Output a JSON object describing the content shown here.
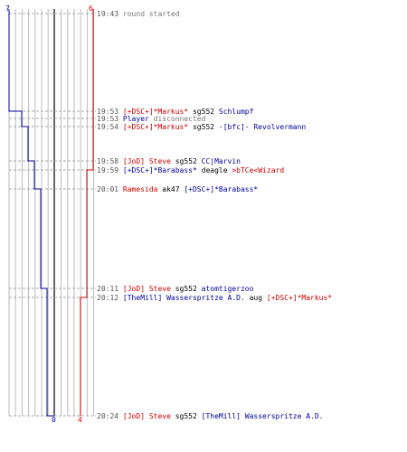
{
  "scores": {
    "blue_start": "7",
    "red_start": "6",
    "blue_end": "0",
    "red_end": "4"
  },
  "colors": {
    "blue": "#000099",
    "red": "#cc0000",
    "grid": "#bbbbbb",
    "center": "#666666",
    "dashed": "#aaaaaa",
    "text": "#000000",
    "timestamp": "#555555"
  },
  "events": [
    {
      "time": "19:43",
      "parts": [
        {
          "t": "round started",
          "c": "gray"
        }
      ]
    },
    {
      "time": "19:53",
      "parts": [
        {
          "t": "[+DSC+]*Markus*",
          "c": "red"
        },
        {
          "t": " sg552 ",
          "c": "text"
        },
        {
          "t": "Schlumpf",
          "c": "blue"
        }
      ]
    },
    {
      "time": "19:53",
      "parts": [
        {
          "t": "Player",
          "c": "blue"
        },
        {
          "t": " disconnected",
          "c": "gray"
        }
      ]
    },
    {
      "time": "19:54",
      "parts": [
        {
          "t": "[+DSC+]*Markus*",
          "c": "red"
        },
        {
          "t": " sg552 ",
          "c": "text"
        },
        {
          "t": "-[bfc]- Revolvermann",
          "c": "blue"
        }
      ]
    },
    {
      "time": "19:58",
      "parts": [
        {
          "t": "[JoD] Steve",
          "c": "red"
        },
        {
          "t": " sg552 ",
          "c": "text"
        },
        {
          "t": "CC|Marvin",
          "c": "blue"
        }
      ]
    },
    {
      "time": "19:59",
      "parts": [
        {
          "t": "[+DSC+]*Barabass*",
          "c": "blue"
        },
        {
          "t": " deagle ",
          "c": "text"
        },
        {
          "t": ">bTCe<Wizard",
          "c": "red"
        }
      ]
    },
    {
      "time": "20:01",
      "parts": [
        {
          "t": "Ramesida",
          "c": "red"
        },
        {
          "t": " ak47 ",
          "c": "text"
        },
        {
          "t": "[+DSC+]*Barabass*",
          "c": "blue"
        }
      ]
    },
    {
      "time": "20:11",
      "parts": [
        {
          "t": "[JoD] Steve",
          "c": "red"
        },
        {
          "t": " sg552 ",
          "c": "text"
        },
        {
          "t": "atomtigerzoo",
          "c": "blue"
        }
      ]
    },
    {
      "time": "20:12",
      "parts": [
        {
          "t": "[TheMill] Wasserspritze A.D.",
          "c": "blue"
        },
        {
          "t": " aug ",
          "c": "text"
        },
        {
          "t": "[+DSC+]*Markus*",
          "c": "red"
        }
      ]
    },
    {
      "time": "20:24",
      "parts": [
        {
          "t": "[JoD] Steve",
          "c": "red"
        },
        {
          "t": " sg552 ",
          "c": "text"
        },
        {
          "t": "[TheMill] Wasserspritze A.D.",
          "c": "blue"
        }
      ]
    }
  ],
  "chart_data": {
    "type": "line",
    "x_axis": "alive players per team (7 ... 0 ... 6)",
    "series": [
      {
        "team": "blue",
        "alive": [
          7,
          6,
          5,
          4,
          3,
          2,
          1,
          0
        ]
      },
      {
        "team": "red",
        "alive": [
          6,
          5,
          4
        ]
      }
    ]
  }
}
